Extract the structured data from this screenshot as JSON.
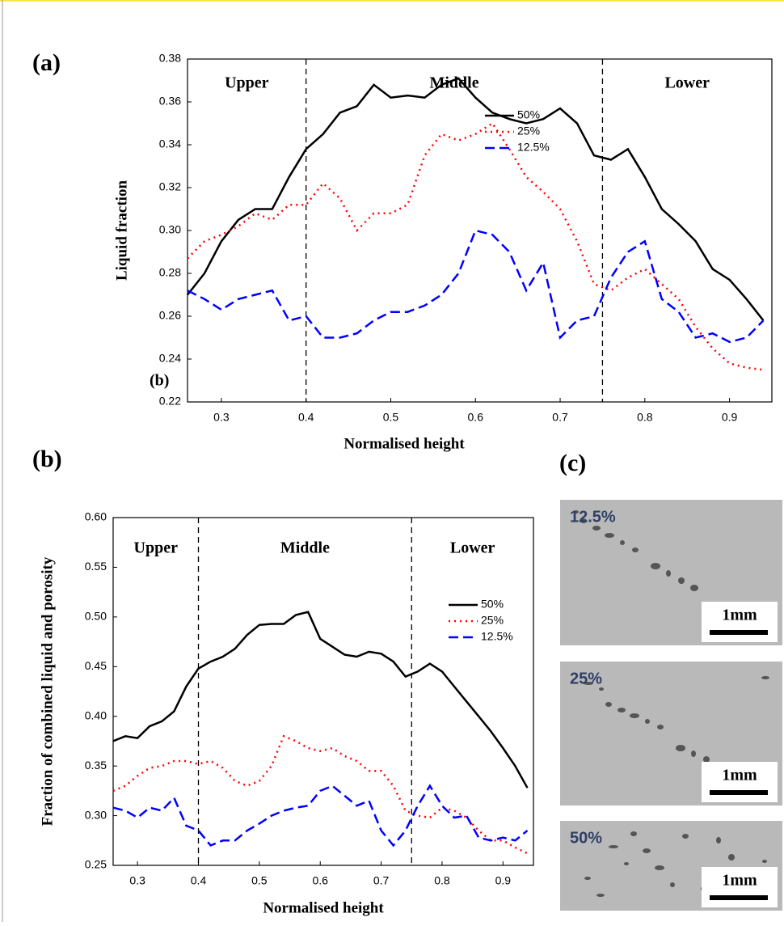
{
  "chart_data": [
    {
      "type": "line",
      "panel_label": "(a)",
      "annotation": "(b)",
      "x_label": "Normalised height",
      "y_label": "Liquid fraction",
      "xlim": [
        0.26,
        0.95
      ],
      "xticks": [
        0.3,
        0.4,
        0.5,
        0.6,
        0.7,
        0.8,
        0.9
      ],
      "ylim": [
        0.22,
        0.38
      ],
      "yticks": [
        0.22,
        0.24,
        0.26,
        0.28,
        {
          "value": 0.3,
          "label": "0.30"
        },
        0.32,
        0.34,
        0.36,
        0.38
      ],
      "grid": false,
      "legend": "upper right",
      "vlines": [
        0.4,
        0.75
      ],
      "regions": [
        "Upper",
        "Middle",
        "Lower"
      ],
      "x": [
        0.26,
        0.28,
        0.3,
        0.32,
        0.34,
        0.36,
        0.38,
        0.4,
        0.42,
        0.44,
        0.46,
        0.48,
        0.5,
        0.52,
        0.54,
        0.56,
        0.58,
        0.6,
        0.62,
        0.64,
        0.66,
        0.68,
        0.7,
        0.72,
        0.74,
        0.76,
        0.78,
        0.8,
        0.82,
        0.84,
        0.86,
        0.88,
        0.9,
        0.92,
        0.94
      ],
      "series": [
        {
          "name": "50%",
          "color": "#000000",
          "dash": "solid",
          "values": [
            0.27,
            0.28,
            0.295,
            0.305,
            0.31,
            0.31,
            0.325,
            0.338,
            0.345,
            0.355,
            0.358,
            0.368,
            0.362,
            0.363,
            0.362,
            0.368,
            0.371,
            0.362,
            0.355,
            0.352,
            0.35,
            0.352,
            0.357,
            0.35,
            0.335,
            0.333,
            0.338,
            0.325,
            0.31,
            0.303,
            0.295,
            0.282,
            0.277,
            0.268,
            0.258
          ]
        },
        {
          "name": "25%",
          "color": "#ff0000",
          "dash": "dotted",
          "values": [
            0.287,
            0.295,
            0.298,
            0.302,
            0.308,
            0.305,
            0.312,
            0.312,
            0.322,
            0.315,
            0.3,
            0.308,
            0.308,
            0.312,
            0.335,
            0.345,
            0.342,
            0.345,
            0.35,
            0.338,
            0.325,
            0.318,
            0.31,
            0.295,
            0.275,
            0.272,
            0.278,
            0.282,
            0.275,
            0.268,
            0.255,
            0.245,
            0.238,
            0.236,
            0.235
          ]
        },
        {
          "name": "12.5%",
          "color": "#0000ff",
          "dash": "dashed",
          "values": [
            0.272,
            0.268,
            0.263,
            0.268,
            0.27,
            0.272,
            0.258,
            0.26,
            0.25,
            0.25,
            0.252,
            0.258,
            0.262,
            0.262,
            0.265,
            0.27,
            0.28,
            0.3,
            0.298,
            0.29,
            0.272,
            0.285,
            0.25,
            0.258,
            0.26,
            0.278,
            0.29,
            0.295,
            0.268,
            0.262,
            0.25,
            0.252,
            0.248,
            0.25,
            0.258
          ]
        }
      ]
    },
    {
      "type": "line",
      "panel_label": "(b)",
      "x_label": "Normalised height",
      "y_label": "Fraction of combined liquid and porosity",
      "xlim": [
        0.26,
        0.95
      ],
      "xticks": [
        0.3,
        0.4,
        0.5,
        0.6,
        0.7,
        0.8,
        0.9
      ],
      "ylim": [
        0.25,
        0.6
      ],
      "yticks": [
        0.25,
        {
          "value": 0.3,
          "label": "0.30"
        },
        0.35,
        {
          "value": 0.4,
          "label": "0.40"
        },
        0.45,
        {
          "value": 0.5,
          "label": "0.50"
        },
        0.55,
        {
          "value": 0.6,
          "label": "0.60"
        }
      ],
      "grid": false,
      "legend": "upper right",
      "vlines": [
        0.4,
        0.75
      ],
      "regions": [
        "Upper",
        "Middle",
        "Lower"
      ],
      "x": [
        0.26,
        0.28,
        0.3,
        0.32,
        0.34,
        0.36,
        0.38,
        0.4,
        0.42,
        0.44,
        0.46,
        0.48,
        0.5,
        0.52,
        0.54,
        0.56,
        0.58,
        0.6,
        0.62,
        0.64,
        0.66,
        0.68,
        0.7,
        0.72,
        0.74,
        0.76,
        0.78,
        0.8,
        0.82,
        0.84,
        0.86,
        0.88,
        0.9,
        0.92,
        0.94
      ],
      "series": [
        {
          "name": "50%",
          "color": "#000000",
          "dash": "solid",
          "values": [
            0.375,
            0.38,
            0.378,
            0.39,
            0.395,
            0.405,
            0.43,
            0.448,
            0.455,
            0.46,
            0.468,
            0.482,
            0.492,
            0.493,
            0.493,
            0.502,
            0.505,
            0.478,
            0.47,
            0.462,
            0.46,
            0.465,
            0.463,
            0.455,
            0.44,
            0.445,
            0.453,
            0.445,
            0.43,
            0.415,
            0.4,
            0.385,
            0.368,
            0.35,
            0.328
          ]
        },
        {
          "name": "25%",
          "color": "#ff0000",
          "dash": "dotted",
          "values": [
            0.325,
            0.33,
            0.34,
            0.348,
            0.35,
            0.355,
            0.355,
            0.352,
            0.355,
            0.348,
            0.335,
            0.33,
            0.335,
            0.35,
            0.38,
            0.375,
            0.368,
            0.365,
            0.368,
            0.36,
            0.355,
            0.345,
            0.345,
            0.33,
            0.305,
            0.3,
            0.298,
            0.308,
            0.305,
            0.298,
            0.285,
            0.275,
            0.275,
            0.268,
            0.262
          ]
        },
        {
          "name": "12.5%",
          "color": "#0000ff",
          "dash": "dashed",
          "values": [
            0.308,
            0.305,
            0.298,
            0.308,
            0.305,
            0.318,
            0.29,
            0.285,
            0.27,
            0.275,
            0.275,
            0.285,
            0.292,
            0.3,
            0.305,
            0.308,
            0.31,
            0.325,
            0.33,
            0.32,
            0.31,
            0.315,
            0.285,
            0.27,
            0.285,
            0.31,
            0.33,
            0.31,
            0.298,
            0.3,
            0.278,
            0.275,
            0.278,
            0.275,
            0.285
          ]
        }
      ]
    }
  ],
  "micrographs": {
    "panel_label": "(c)",
    "panels": [
      {
        "label": "12.5%",
        "scale": "1mm"
      },
      {
        "label": "25%",
        "scale": "1mm"
      },
      {
        "label": "50%",
        "scale": "1mm"
      }
    ]
  }
}
